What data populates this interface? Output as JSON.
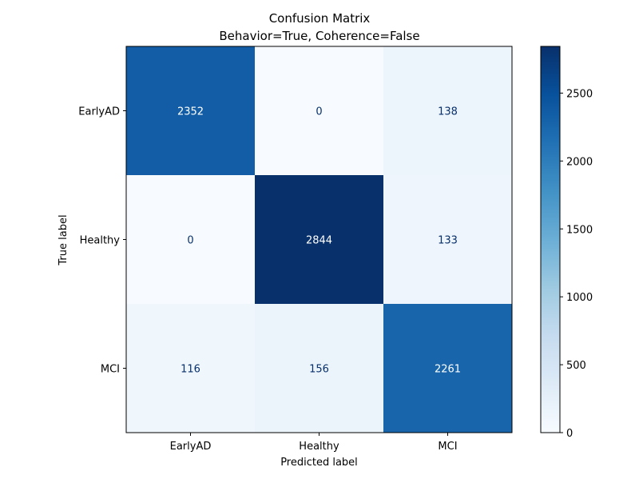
{
  "chart_data": {
    "type": "heatmap",
    "title": "Confusion Matrix",
    "subtitle": "Behavior=True, Coherence=False",
    "xlabel": "Predicted label",
    "ylabel": "True label",
    "x_categories": [
      "EarlyAD",
      "Healthy",
      "MCI"
    ],
    "y_categories": [
      "EarlyAD",
      "Healthy",
      "MCI"
    ],
    "matrix": [
      [
        2352,
        0,
        138
      ],
      [
        0,
        2844,
        133
      ],
      [
        116,
        156,
        2261
      ]
    ],
    "colormap": "Blues",
    "colorbar": {
      "min": 0,
      "max": 2844,
      "ticks": [
        0,
        500,
        1000,
        1500,
        2000,
        2500
      ]
    },
    "label_colors": {
      "on_dark": "#ffffff",
      "on_light": "#08306b"
    }
  }
}
